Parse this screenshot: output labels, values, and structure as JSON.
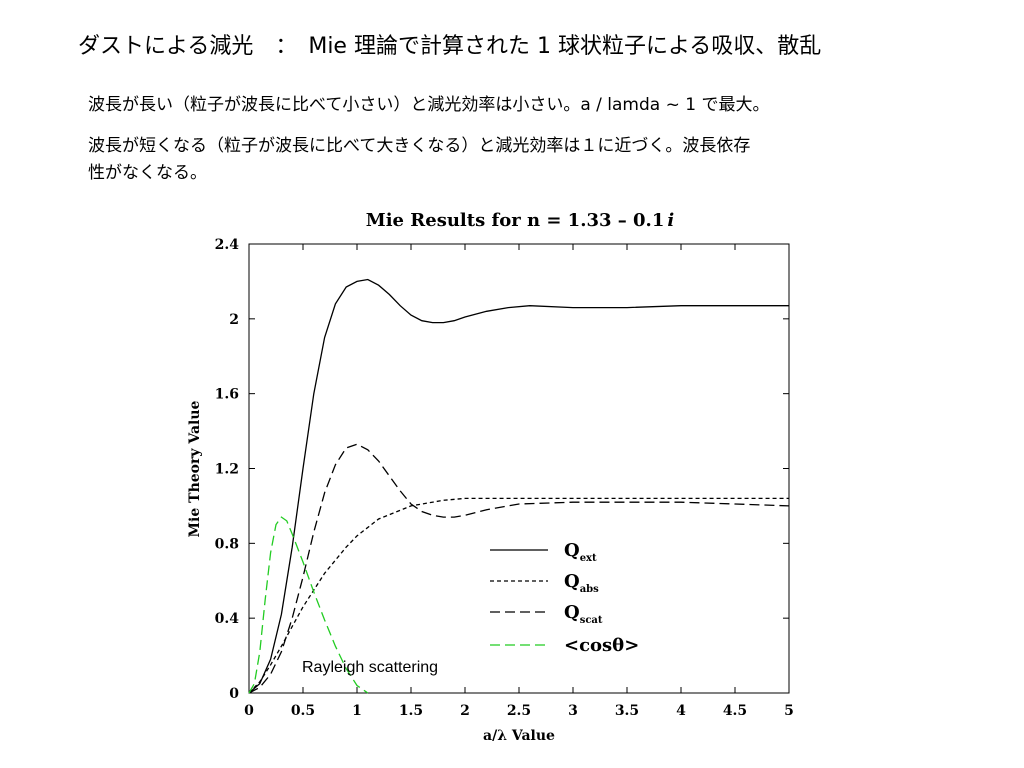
{
  "slide": {
    "title": "ダストによる減光　：　Mie 理論で計算された 1 球状粒子による吸収、散乱",
    "lines": [
      "波長が長い（粒子が波長に比べて小さい）と減光効率は小さい。a / lamda ~ 1 で最大。",
      "波長が短くなる（粒子が波長に比べて大きくなる）と減光効率は１に近づく。波長依存",
      "性がなくなる。"
    ]
  },
  "chart_data": {
    "type": "line",
    "title": "Mie Results for n = 1.33 – 0.1",
    "title_italic": "i",
    "xlabel": "a/λ Value",
    "ylabel": "Mie Theory Value",
    "xlim": [
      0,
      5
    ],
    "ylim": [
      0,
      2.4
    ],
    "xticks": [
      "0",
      "0.5",
      "1",
      "1.5",
      "2",
      "2.5",
      "3",
      "3.5",
      "4",
      "4.5",
      "5"
    ],
    "yticks": [
      "0",
      "0.4",
      "0.8",
      "1.2",
      "1.6",
      "2",
      "2.4"
    ],
    "grid": false,
    "legend_position": "lower-right",
    "annotation": "Rayleigh scattering",
    "series": [
      {
        "name": "Qext",
        "legend_main": "Q",
        "legend_sub": "ext",
        "color": "#000000",
        "dash": "solid",
        "x": [
          0,
          0.1,
          0.2,
          0.3,
          0.4,
          0.5,
          0.6,
          0.7,
          0.8,
          0.9,
          1.0,
          1.1,
          1.2,
          1.3,
          1.4,
          1.5,
          1.6,
          1.7,
          1.8,
          1.9,
          2.0,
          2.2,
          2.4,
          2.6,
          3.0,
          3.5,
          4.0,
          4.5,
          5.0
        ],
        "y": [
          0,
          0.05,
          0.18,
          0.42,
          0.78,
          1.2,
          1.6,
          1.9,
          2.08,
          2.17,
          2.2,
          2.21,
          2.18,
          2.13,
          2.07,
          2.02,
          1.99,
          1.98,
          1.98,
          1.99,
          2.01,
          2.04,
          2.06,
          2.07,
          2.06,
          2.06,
          2.07,
          2.07,
          2.07
        ]
      },
      {
        "name": "Qabs",
        "legend_main": "Q",
        "legend_sub": "abs",
        "color": "#000000",
        "dash": "short",
        "x": [
          0,
          0.1,
          0.2,
          0.3,
          0.5,
          0.7,
          0.9,
          1.0,
          1.2,
          1.5,
          1.8,
          2.0,
          2.5,
          3.0,
          3.5,
          4.0,
          4.5,
          5.0
        ],
        "y": [
          0,
          0.06,
          0.15,
          0.25,
          0.46,
          0.64,
          0.78,
          0.84,
          0.93,
          1.0,
          1.03,
          1.04,
          1.04,
          1.04,
          1.04,
          1.04,
          1.04,
          1.04
        ]
      },
      {
        "name": "Qscat",
        "legend_main": "Q",
        "legend_sub": "scat",
        "color": "#000000",
        "dash": "long",
        "x": [
          0,
          0.1,
          0.2,
          0.3,
          0.4,
          0.5,
          0.6,
          0.7,
          0.8,
          0.9,
          1.0,
          1.1,
          1.2,
          1.3,
          1.4,
          1.5,
          1.6,
          1.7,
          1.8,
          1.9,
          2.0,
          2.2,
          2.5,
          3.0,
          3.5,
          4.0,
          4.5,
          5.0
        ],
        "y": [
          0,
          0.03,
          0.1,
          0.22,
          0.4,
          0.62,
          0.86,
          1.07,
          1.22,
          1.31,
          1.33,
          1.3,
          1.24,
          1.16,
          1.08,
          1.01,
          0.97,
          0.95,
          0.94,
          0.94,
          0.95,
          0.98,
          1.01,
          1.02,
          1.02,
          1.02,
          1.01,
          1.0
        ]
      },
      {
        "name": "cos",
        "legend_text": "<cosθ>",
        "color": "#22cc22",
        "dash": "long",
        "x": [
          0,
          0.05,
          0.1,
          0.15,
          0.2,
          0.25,
          0.3,
          0.35,
          0.4,
          0.5,
          0.6,
          0.7,
          0.8,
          0.9,
          1.0,
          1.1
        ],
        "y": [
          0,
          0.05,
          0.22,
          0.5,
          0.75,
          0.9,
          0.94,
          0.92,
          0.85,
          0.7,
          0.54,
          0.39,
          0.25,
          0.13,
          0.04,
          0.0
        ]
      }
    ]
  }
}
